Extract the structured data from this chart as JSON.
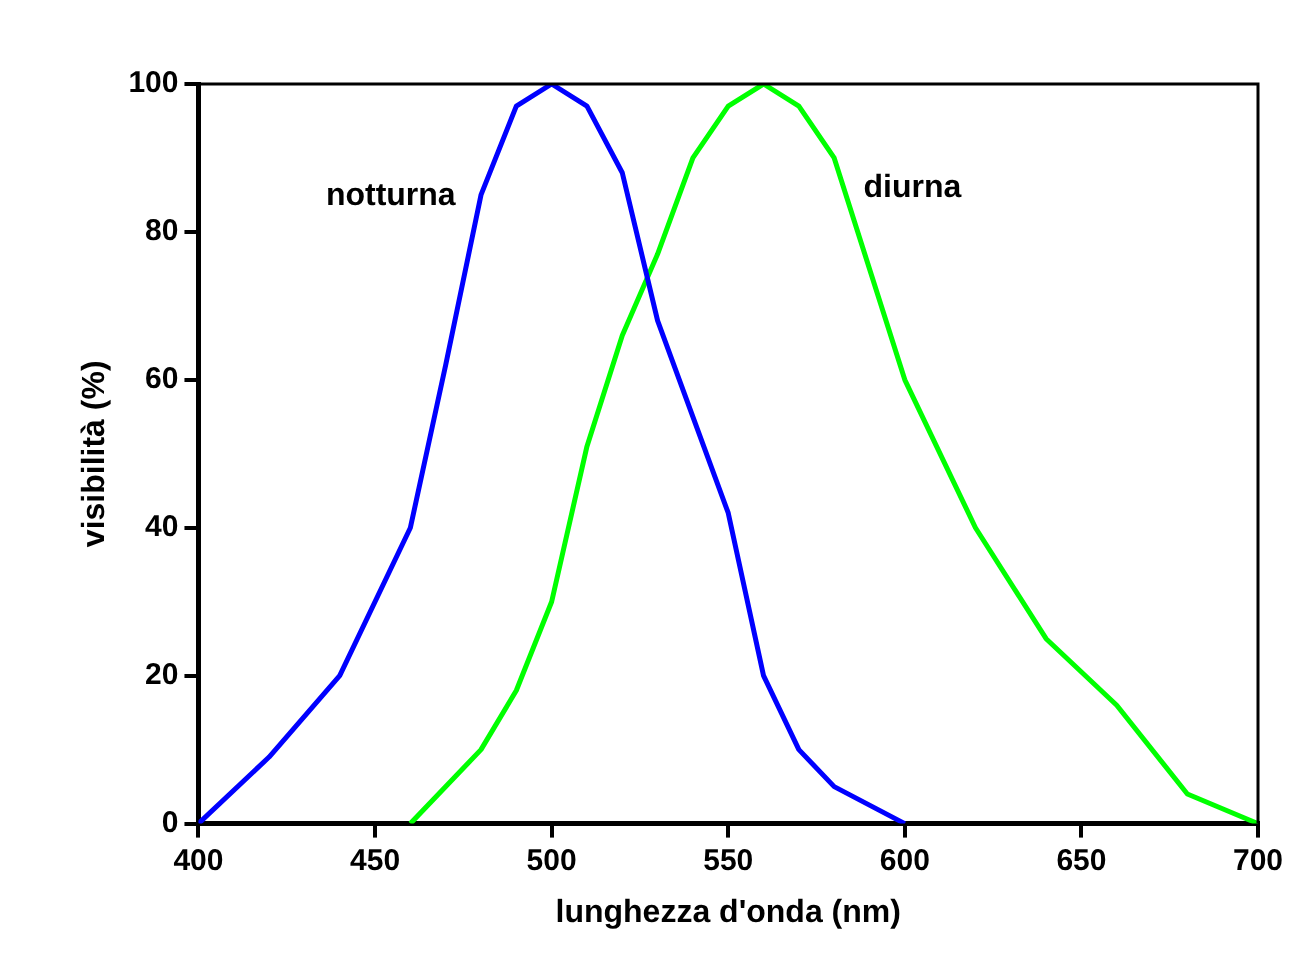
{
  "chart_data": {
    "type": "line",
    "xlabel": "lunghezza d'onda (nm)",
    "ylabel": "visibilità (%)",
    "xlim": [
      400,
      700
    ],
    "xticks": [
      400,
      450,
      500,
      550,
      600,
      650,
      700
    ],
    "ylim": [
      0,
      100
    ],
    "yticks": [
      0,
      20,
      40,
      60,
      80,
      100
    ],
    "grid": false,
    "legend": false,
    "marker": "none",
    "line_style": "solid",
    "series": [
      {
        "name": "notturna",
        "color": "#0000ff",
        "x": [
          400,
          420,
          440,
          460,
          470,
          480,
          490,
          500,
          510,
          520,
          530,
          540,
          550,
          560,
          570,
          580,
          600
        ],
        "values": [
          0,
          9,
          20,
          40,
          62,
          85,
          97,
          100,
          97,
          88,
          68,
          55,
          42,
          20,
          10,
          5,
          0
        ]
      },
      {
        "name": "diurna",
        "color": "#00ff00",
        "x": [
          460,
          480,
          490,
          500,
          510,
          520,
          530,
          540,
          550,
          560,
          570,
          580,
          600,
          620,
          640,
          660,
          680,
          700
        ],
        "values": [
          0,
          10,
          18,
          30,
          51,
          66,
          77,
          90,
          97,
          100,
          97,
          90,
          60,
          40,
          25,
          16,
          4,
          0
        ]
      }
    ]
  }
}
